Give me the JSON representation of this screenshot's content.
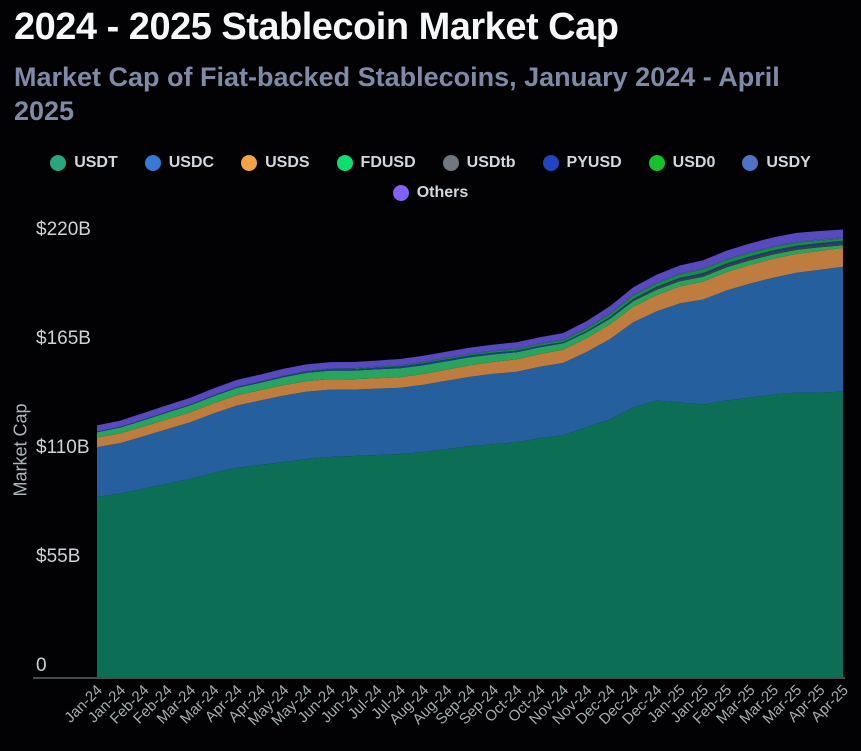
{
  "header": {
    "title": "2024 - 2025 Stablecoin Market Cap",
    "subtitle": "Market Cap of Fiat-backed Stablecoins, January 2024 - April 2025"
  },
  "colors": {
    "background": "#020204",
    "title_text": "#f5f7f9",
    "subtitle_text": "#7e8aa6",
    "legend_text": "#d2d8de",
    "axis_label_text": "#ccd4d6",
    "x_tick_text": "#a3b0ac",
    "axis_line": "#5a6569"
  },
  "chart_data": {
    "type": "area",
    "stacked": true,
    "title": "2024 - 2025 Stablecoin Market Cap",
    "subtitle": "Market Cap of Fiat-backed Stablecoins, January 2024 - April 2025",
    "xlabel": "",
    "ylabel": "Market Cap",
    "ylim": [
      0,
      220
    ],
    "grid": false,
    "legend_position": "top",
    "units": "billions USD",
    "y_ticks": [
      {
        "label": "$220B",
        "value": 220
      },
      {
        "label": "$165B",
        "value": 165
      },
      {
        "label": "$110B",
        "value": 110
      },
      {
        "label": "$55B",
        "value": 55
      },
      {
        "label": "0",
        "value": 0
      }
    ],
    "categories": [
      "Jan-24",
      "Jan-24",
      "Feb-24",
      "Feb-24",
      "Mar-24",
      "Mar-24",
      "Apr-24",
      "Apr-24",
      "May-24",
      "May-24",
      "Jun-24",
      "Jun-24",
      "Jul-24",
      "Jul-24",
      "Aug-24",
      "Aug-24",
      "Sep-24",
      "Sep-24",
      "Oct-24",
      "Oct-24",
      "Nov-24",
      "Nov-24",
      "Dec-24",
      "Dec-24",
      "Dec-24",
      "Jan-25",
      "Jan-25",
      "Feb-25",
      "Mar-25",
      "Mar-25",
      "Mar-25",
      "Apr-25",
      "Apr-25"
    ],
    "series": [
      {
        "name": "USDT",
        "dot_color": "#2aa67e",
        "fill_color": "#0b6e55",
        "values": [
          91,
          92.5,
          95,
          97.5,
          100,
          103,
          105.5,
          107,
          108.5,
          110,
          111,
          111.5,
          112,
          112.5,
          113.5,
          115,
          116.5,
          117.5,
          118.5,
          120.5,
          122,
          126,
          130,
          136,
          139.5,
          138.5,
          137.5,
          139.5,
          141,
          142.5,
          143.5,
          143.5,
          144
        ]
      },
      {
        "name": "USDC",
        "dot_color": "#3779d4",
        "fill_color": "#255f9e",
        "values": [
          25,
          25.5,
          26.5,
          27.5,
          28.5,
          30,
          31.5,
          32.5,
          33.5,
          34,
          34,
          33.5,
          33.5,
          33.5,
          34,
          34.5,
          35,
          35.5,
          35.5,
          36,
          36.5,
          38,
          40.5,
          43,
          45,
          50,
          53,
          55.5,
          57.5,
          59,
          60.5,
          62,
          63
        ]
      },
      {
        "name": "USDS",
        "dot_color": "#f2a444",
        "fill_color": "#be7d3e",
        "values": [
          4.8,
          4.9,
          4.9,
          5,
          5.1,
          5.1,
          5.2,
          5.2,
          5.3,
          5.3,
          5.3,
          5.2,
          5.2,
          5.3,
          5.4,
          5.6,
          5.8,
          6,
          6.3,
          6.5,
          6.7,
          7,
          7.4,
          7.8,
          8.2,
          8.6,
          9,
          9.3,
          9.4,
          9.5,
          9.5,
          9.5,
          9.5
        ]
      },
      {
        "name": "FDUSD",
        "dot_color": "#0ddf6f",
        "fill_color": "#28a45c",
        "values": [
          2.7,
          3,
          3.2,
          3.4,
          3.5,
          3.6,
          3.7,
          3.8,
          4,
          4.2,
          4.3,
          4.4,
          4.5,
          4.5,
          4.4,
          4.2,
          4,
          3.8,
          3.6,
          3.4,
          3.2,
          3,
          2.9,
          2.8,
          2.7,
          2.6,
          2.5,
          2.4,
          2.3,
          2.2,
          2,
          1.8,
          1.4
        ]
      },
      {
        "name": "USDtb",
        "dot_color": "#717780",
        "fill_color": "#36404c",
        "values": [
          0,
          0,
          0,
          0,
          0,
          0,
          0,
          0,
          0,
          0,
          0,
          0,
          0,
          0,
          0,
          0,
          0,
          0,
          0,
          0,
          0,
          0,
          0.3,
          0.7,
          1,
          1.2,
          1.3,
          1.35,
          1.4,
          1.4,
          1.4,
          1.4,
          1.4
        ]
      },
      {
        "name": "PYUSD",
        "dot_color": "#2344c0",
        "fill_color": "#1f3a8c",
        "values": [
          0.3,
          0.3,
          0.3,
          0.3,
          0.3,
          0.35,
          0.4,
          0.45,
          0.5,
          0.55,
          0.65,
          0.7,
          0.8,
          0.9,
          1,
          1,
          0.95,
          0.9,
          0.8,
          0.7,
          0.65,
          0.6,
          0.55,
          0.5,
          0.5,
          0.5,
          0.55,
          0.6,
          0.65,
          0.7,
          0.75,
          0.8,
          0.85
        ]
      },
      {
        "name": "USD0",
        "dot_color": "#15c22e",
        "fill_color": "#15913c",
        "values": [
          0,
          0,
          0,
          0,
          0,
          0,
          0,
          0,
          0.05,
          0.1,
          0.15,
          0.2,
          0.3,
          0.4,
          0.45,
          0.5,
          0.55,
          0.6,
          0.7,
          0.8,
          0.9,
          1.1,
          1.3,
          1.5,
          1.6,
          1.7,
          1.75,
          1.7,
          1.6,
          1.5,
          1.4,
          1.2,
          1
        ]
      },
      {
        "name": "USDY",
        "dot_color": "#4e72c4",
        "fill_color": "#415e9c",
        "values": [
          0.05,
          0.07,
          0.1,
          0.12,
          0.15,
          0.17,
          0.2,
          0.22,
          0.25,
          0.27,
          0.3,
          0.32,
          0.33,
          0.35,
          0.37,
          0.38,
          0.4,
          0.42,
          0.44,
          0.45,
          0.45,
          0.46,
          0.48,
          0.5,
          0.52,
          0.54,
          0.55,
          0.57,
          0.58,
          0.6,
          0.62,
          0.63,
          0.65
        ]
      },
      {
        "name": "Others",
        "dot_color": "#8262f5",
        "fill_color": "#5849be",
        "values": [
          3.1,
          3.1,
          3.2,
          3.3,
          3.4,
          3.4,
          3.4,
          3.4,
          3.4,
          3.3,
          3.2,
          3.1,
          3,
          3,
          3,
          3,
          3,
          3,
          3.1,
          3.1,
          3.2,
          3.4,
          3.6,
          3.8,
          3.9,
          4,
          4.1,
          4.2,
          4.3,
          4.4,
          4.4,
          4.2,
          4
        ]
      }
    ]
  }
}
